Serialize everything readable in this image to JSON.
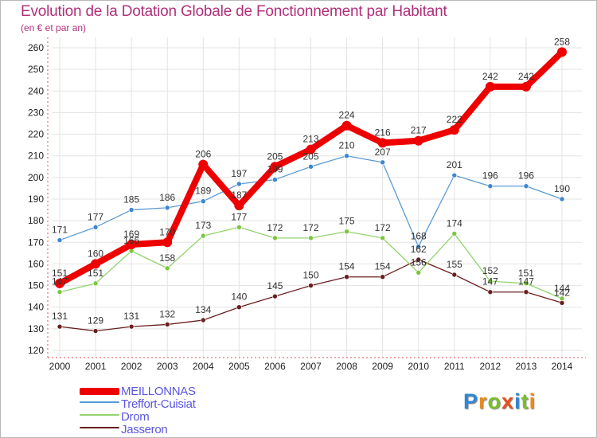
{
  "title": "Evolution de la Dotation Globale de Fonctionnement par Habitant",
  "subtitle": "(en € et par an)",
  "logo": {
    "text": "Proxiti",
    "letters": [
      {
        "ch": "P",
        "color": "#2f86d2"
      },
      {
        "ch": "r",
        "color": "#e98a1e"
      },
      {
        "ch": "o",
        "color": "#79bf2c"
      },
      {
        "ch": "x",
        "color": "#e94e1b"
      },
      {
        "ch": "i",
        "color": "#2f86d2"
      },
      {
        "ch": "t",
        "color": "#79bf2c"
      },
      {
        "ch": "i",
        "color": "#e98a1e"
      }
    ]
  },
  "legend": [
    {
      "label": "MEILLONNAS",
      "color": "#ee0000",
      "thick": true
    },
    {
      "label": "Treffort-Cuisiat",
      "color": "#5b9bd5",
      "thick": false
    },
    {
      "label": "Drom",
      "color": "#92d36e",
      "thick": false
    },
    {
      "label": "Jasseron",
      "color": "#6a1e1e",
      "thick": false
    }
  ],
  "chart_data": {
    "type": "line",
    "title": "Evolution de la Dotation Globale de Fonctionnement par Habitant",
    "ylabel": "(en € et par an)",
    "xlabel": "",
    "ylim": [
      120,
      260
    ],
    "yticks": [
      120,
      130,
      140,
      150,
      160,
      170,
      180,
      190,
      200,
      210,
      220,
      230,
      240,
      250,
      260
    ],
    "grid": true,
    "categories": [
      "2000",
      "2001",
      "2002",
      "2003",
      "2004",
      "2005",
      "2006",
      "2007",
      "2008",
      "2009",
      "2010",
      "2011",
      "2012",
      "2013",
      "2014"
    ],
    "series": [
      {
        "name": "Jasseron",
        "color": "#6a1e1e",
        "marker": "#6a1e1e",
        "width": 1.3,
        "values": [
          131,
          129,
          131,
          132,
          134,
          140,
          145,
          150,
          154,
          154,
          162,
          155,
          147,
          147,
          142
        ],
        "labels": [
          "131",
          "129",
          "131",
          "132",
          "134",
          "140",
          "145",
          "150",
          "154",
          "154",
          "162",
          "155",
          "147",
          "147",
          "142"
        ]
      },
      {
        "name": "Drom",
        "color": "#92d36e",
        "marker": "#7cc63e",
        "width": 1.3,
        "values": [
          147,
          151,
          166,
          158,
          173,
          177,
          172,
          172,
          175,
          172,
          156,
          174,
          152,
          151,
          144
        ],
        "labels": [
          "147",
          "151",
          "166",
          "158",
          "173",
          "177",
          "172",
          "172",
          "175",
          "172",
          "156",
          "174",
          "152",
          "151",
          "144"
        ]
      },
      {
        "name": "Treffort-Cuisiat",
        "color": "#5b9bd5",
        "marker": "#3e86cf",
        "width": 1.3,
        "values": [
          171,
          177,
          185,
          186,
          189,
          197,
          199,
          205,
          210,
          207,
          168,
          201,
          196,
          196,
          190
        ],
        "labels": [
          "171",
          "177",
          "185",
          "186",
          "189",
          "197",
          "199",
          "205",
          "210",
          "207",
          "168",
          "201",
          "196",
          "196",
          "190"
        ]
      },
      {
        "name": "MEILLONNAS",
        "color": "#ee0000",
        "marker": "#ee0000",
        "width": 8,
        "values": [
          151,
          160,
          169,
          170,
          206,
          187,
          205,
          213,
          224,
          216,
          217,
          222,
          242,
          242,
          258
        ],
        "labels": [
          "151",
          "160",
          "169",
          "170",
          "206",
          "187",
          "205",
          "213",
          "224",
          "216",
          "217",
          "222",
          "242",
          "242",
          "258"
        ]
      }
    ]
  }
}
